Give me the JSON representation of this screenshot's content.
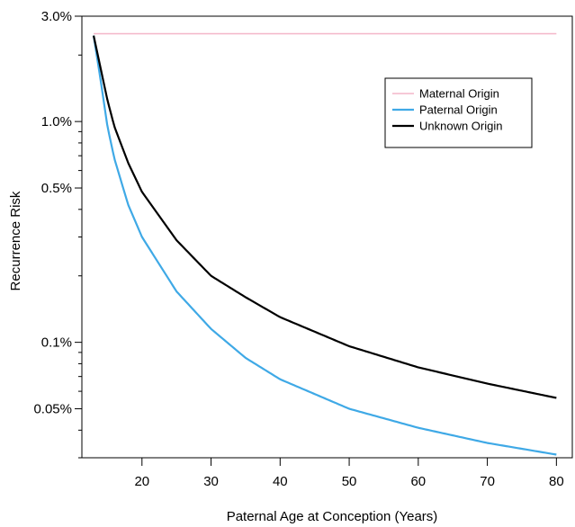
{
  "chart_data": {
    "type": "line",
    "title": "",
    "xlabel": "Paternal Age at Conception (Years)",
    "ylabel": "Recurrence Risk",
    "y_scale": "log",
    "xlim": [
      11.3,
      82.3
    ],
    "ylim": [
      0.0003,
      0.03
    ],
    "x_ticks": [
      {
        "value": 20,
        "label": "20"
      },
      {
        "value": 30,
        "label": "30"
      },
      {
        "value": 40,
        "label": "40"
      },
      {
        "value": 50,
        "label": "50"
      },
      {
        "value": 60,
        "label": "60"
      },
      {
        "value": 70,
        "label": "70"
      },
      {
        "value": 80,
        "label": "80"
      }
    ],
    "y_ticks_labeled": [
      {
        "value": 0.03,
        "label": "3.0%"
      },
      {
        "value": 0.01,
        "label": "1.0%"
      },
      {
        "value": 0.005,
        "label": "0.5%"
      },
      {
        "value": 0.001,
        "label": "0.1%"
      },
      {
        "value": 0.0005,
        "label": "0.05%"
      }
    ],
    "y_ticks_minor": [
      0.02,
      0.009,
      0.008,
      0.007,
      0.006,
      0.004,
      0.003,
      0.002,
      0.0009,
      0.0008,
      0.0007,
      0.0006,
      0.0004,
      0.0003
    ],
    "grid": false,
    "legend_position": "top-right",
    "series": [
      {
        "name": "Maternal Origin",
        "color": "#f4b6c8",
        "x": [
          13,
          80
        ],
        "y": [
          0.025,
          0.025
        ]
      },
      {
        "name": "Paternal Origin",
        "color": "#3fa9e6",
        "x": [
          13,
          14,
          15,
          16,
          18,
          20,
          25,
          30,
          35,
          40,
          50,
          60,
          70,
          80
        ],
        "y": [
          0.0245,
          0.0155,
          0.0095,
          0.0068,
          0.0042,
          0.003,
          0.0017,
          0.00115,
          0.00085,
          0.00068,
          0.0005,
          0.00041,
          0.00035,
          0.00031
        ]
      },
      {
        "name": "Unknown Origin",
        "color": "#000000",
        "x": [
          13,
          14,
          15,
          16,
          18,
          20,
          25,
          30,
          35,
          40,
          50,
          60,
          70,
          80
        ],
        "y": [
          0.0245,
          0.0175,
          0.0125,
          0.0095,
          0.0065,
          0.0048,
          0.0029,
          0.002,
          0.0016,
          0.0013,
          0.00096,
          0.00077,
          0.00065,
          0.00056
        ]
      }
    ]
  }
}
